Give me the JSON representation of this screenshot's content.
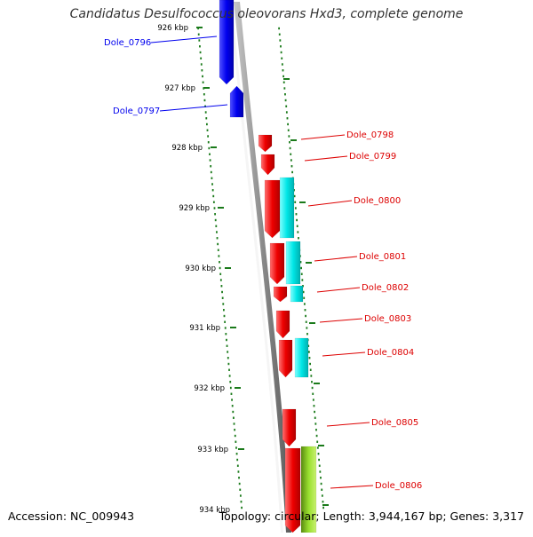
{
  "title": "Candidatus Desulfococcus oleovorans Hxd3, complete genome",
  "accession": "Accession: NC_009943",
  "topology": "Topology: circular; Length: 3,944,167 bp; Genes: 3,317",
  "ticks": [
    "926 kbp",
    "927 kbp",
    "928 kbp",
    "929 kbp",
    "930 kbp",
    "931 kbp",
    "932 kbp",
    "933 kbp",
    "934 kbp"
  ],
  "genes": [
    {
      "label": "Dole_0796",
      "side": "left",
      "color": "#0000ee"
    },
    {
      "label": "Dole_0797",
      "side": "left",
      "color": "#0000ee"
    },
    {
      "label": "Dole_0798",
      "side": "right",
      "color": "#dd0000"
    },
    {
      "label": "Dole_0799",
      "side": "right",
      "color": "#dd0000"
    },
    {
      "label": "Dole_0800",
      "side": "right",
      "color": "#dd0000"
    },
    {
      "label": "Dole_0801",
      "side": "right",
      "color": "#dd0000"
    },
    {
      "label": "Dole_0802",
      "side": "right",
      "color": "#dd0000"
    },
    {
      "label": "Dole_0803",
      "side": "right",
      "color": "#dd0000"
    },
    {
      "label": "Dole_0804",
      "side": "right",
      "color": "#dd0000"
    },
    {
      "label": "Dole_0805",
      "side": "right",
      "color": "#dd0000"
    },
    {
      "label": "Dole_0806",
      "side": "right",
      "color": "#dd0000"
    }
  ],
  "colors": {
    "forward_gene": "#ee0000",
    "reverse_gene": "#0000ee",
    "feature_cyan": "#00e0e0",
    "feature_green": "#88dd22",
    "backbone": "#888888",
    "tick": "#1a7a1a"
  }
}
